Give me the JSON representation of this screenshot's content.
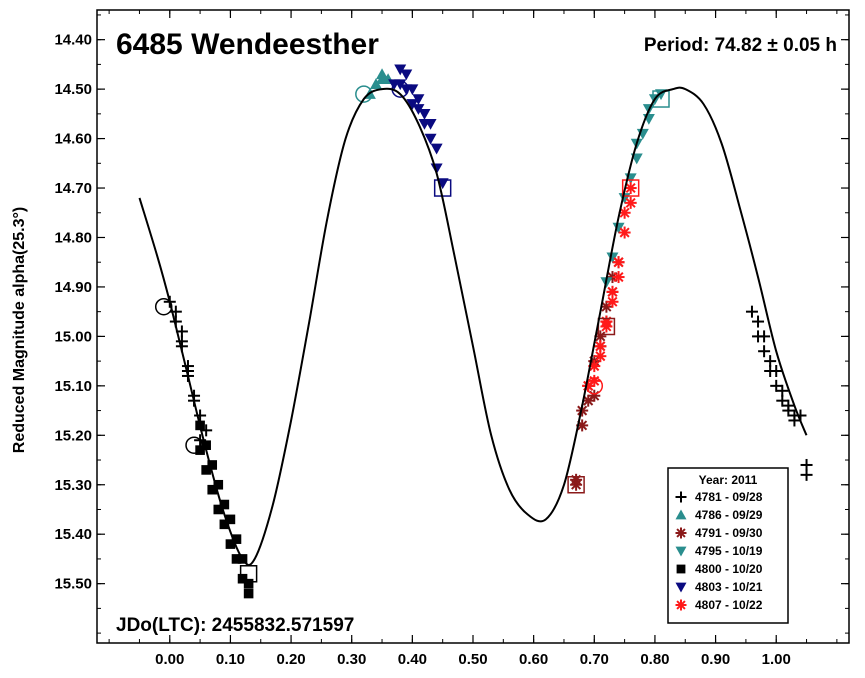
{
  "chart_data": {
    "type": "scatter",
    "title": "6485 Wendeesther",
    "period_label": "Period: 74.82 ± 0.05 h",
    "jdo_label": "JDo(LTC): 2455832.571597",
    "ylabel": "Reduced Magnitude alpha(25.3°)",
    "xlabel": "",
    "xlim": [
      -0.12,
      1.12
    ],
    "ylim": [
      15.62,
      14.34
    ],
    "y_inverted": true,
    "x_ticks": [
      "0.00",
      "0.10",
      "0.20",
      "0.30",
      "0.40",
      "0.50",
      "0.60",
      "0.70",
      "0.80",
      "0.90",
      "1.00"
    ],
    "y_ticks": [
      "14.40",
      "14.50",
      "14.60",
      "14.70",
      "14.80",
      "14.90",
      "15.00",
      "15.10",
      "15.20",
      "15.30",
      "15.40",
      "15.50"
    ],
    "grid": false,
    "legend_position": "bottom-right",
    "legend": {
      "title": "Year: 2011",
      "entries": [
        {
          "label": "4781 - 09/28",
          "marker": "plus",
          "color": "#000000"
        },
        {
          "label": "4786 - 09/29",
          "marker": "triangle-up",
          "color": "#2a8e8e"
        },
        {
          "label": "4791 - 09/30",
          "marker": "asterisk",
          "color": "#8b1a1a"
        },
        {
          "label": "4795 - 10/19",
          "marker": "triangle-down",
          "color": "#2a8e8e"
        },
        {
          "label": "4800 - 10/20",
          "marker": "square",
          "color": "#000000"
        },
        {
          "label": "4803 - 10/21",
          "marker": "triangle-down",
          "color": "#0a0a80"
        },
        {
          "label": "4807 - 10/22",
          "marker": "asterisk",
          "color": "#ff1a1a"
        }
      ]
    },
    "fit_curve": {
      "x": [
        -0.05,
        -0.02,
        0.0,
        0.03,
        0.06,
        0.09,
        0.12,
        0.14,
        0.17,
        0.2,
        0.23,
        0.26,
        0.29,
        0.32,
        0.35,
        0.38,
        0.41,
        0.44,
        0.47,
        0.5,
        0.53,
        0.56,
        0.59,
        0.62,
        0.65,
        0.68,
        0.71,
        0.74,
        0.77,
        0.8,
        0.83,
        0.85,
        0.88,
        0.91,
        0.94,
        0.97,
        1.0,
        1.03,
        1.05
      ],
      "y": [
        14.72,
        14.84,
        14.93,
        15.08,
        15.23,
        15.36,
        15.45,
        15.45,
        15.34,
        15.17,
        14.97,
        14.76,
        14.6,
        14.52,
        14.5,
        14.51,
        14.57,
        14.67,
        14.84,
        15.02,
        15.2,
        15.31,
        15.36,
        15.37,
        15.3,
        15.14,
        14.95,
        14.76,
        14.61,
        14.52,
        14.5,
        14.5,
        14.53,
        14.61,
        14.74,
        14.88,
        15.03,
        15.14,
        15.2
      ]
    },
    "series": [
      {
        "name": "4781 - 09/28",
        "marker": "plus",
        "color": "#000000",
        "x": [
          0.0,
          0.01,
          0.01,
          0.02,
          0.02,
          0.02,
          0.03,
          0.03,
          0.03,
          0.04,
          0.04,
          0.05,
          0.05,
          0.06,
          0.96,
          0.97,
          0.97,
          0.98,
          0.98,
          0.99,
          0.99,
          1.0,
          1.0,
          1.01,
          1.01,
          1.02,
          1.02,
          1.03,
          1.03,
          1.04,
          1.05,
          1.05
        ],
        "y": [
          14.93,
          14.95,
          14.97,
          14.99,
          15.01,
          15.02,
          15.06,
          15.08,
          15.07,
          15.12,
          15.13,
          15.16,
          15.21,
          15.19,
          14.95,
          14.97,
          15.0,
          15.0,
          15.03,
          15.05,
          15.07,
          15.07,
          15.1,
          15.11,
          15.13,
          15.14,
          15.15,
          15.16,
          15.17,
          15.16,
          15.26,
          15.28
        ]
      },
      {
        "name": "4786 - 09/29",
        "marker": "triangle-up",
        "color": "#2a8e8e",
        "x": [
          0.33,
          0.34,
          0.35,
          0.35,
          0.36
        ],
        "y": [
          14.51,
          14.49,
          14.48,
          14.47,
          14.48
        ]
      },
      {
        "name": "4791 - 09/30",
        "marker": "asterisk",
        "color": "#8b1a1a",
        "x": [
          0.67,
          0.67,
          0.68,
          0.68,
          0.69,
          0.69,
          0.7,
          0.7,
          0.71,
          0.71,
          0.72,
          0.72,
          0.73,
          0.73,
          0.74
        ],
        "y": [
          15.29,
          15.3,
          15.18,
          15.15,
          15.13,
          15.1,
          15.12,
          15.05,
          15.02,
          15.0,
          14.97,
          14.94,
          14.91,
          14.88,
          14.85
        ]
      },
      {
        "name": "4795 - 10/19",
        "marker": "triangle-down",
        "color": "#2a8e8e",
        "x": [
          0.72,
          0.73,
          0.74,
          0.75,
          0.76,
          0.77,
          0.77,
          0.78,
          0.79,
          0.79,
          0.8,
          0.81
        ],
        "y": [
          14.89,
          14.84,
          14.78,
          14.72,
          14.68,
          14.64,
          14.61,
          14.59,
          14.56,
          14.54,
          14.52,
          14.51
        ]
      },
      {
        "name": "4800 - 10/20",
        "marker": "square",
        "color": "#000000",
        "x": [
          0.05,
          0.05,
          0.06,
          0.06,
          0.07,
          0.07,
          0.08,
          0.08,
          0.09,
          0.09,
          0.1,
          0.1,
          0.11,
          0.11,
          0.12,
          0.12,
          0.13,
          0.13
        ],
        "y": [
          15.18,
          15.23,
          15.22,
          15.27,
          15.26,
          15.31,
          15.3,
          15.35,
          15.34,
          15.38,
          15.37,
          15.42,
          15.41,
          15.45,
          15.45,
          15.49,
          15.5,
          15.52
        ]
      },
      {
        "name": "4803 - 10/21",
        "marker": "triangle-down",
        "color": "#0a0a80",
        "x": [
          0.37,
          0.38,
          0.38,
          0.39,
          0.39,
          0.4,
          0.4,
          0.41,
          0.41,
          0.42,
          0.42,
          0.43,
          0.43,
          0.44,
          0.44,
          0.45
        ],
        "y": [
          14.49,
          14.46,
          14.49,
          14.47,
          14.5,
          14.5,
          14.53,
          14.52,
          14.54,
          14.55,
          14.57,
          14.57,
          14.6,
          14.62,
          14.66,
          14.69
        ]
      },
      {
        "name": "4807 - 10/22",
        "marker": "asterisk",
        "color": "#ff1a1a",
        "x": [
          0.69,
          0.7,
          0.7,
          0.71,
          0.71,
          0.72,
          0.72,
          0.73,
          0.73,
          0.74,
          0.74,
          0.75,
          0.75,
          0.76,
          0.76
        ],
        "y": [
          15.1,
          15.06,
          15.09,
          15.02,
          15.04,
          14.98,
          14.97,
          14.93,
          14.91,
          14.88,
          14.85,
          14.79,
          14.75,
          14.73,
          14.7
        ]
      }
    ],
    "open_markers": [
      {
        "shape": "circle",
        "x": -0.01,
        "y": 14.94,
        "color": "#000000"
      },
      {
        "shape": "circle",
        "x": 0.04,
        "y": 15.22,
        "color": "#000000"
      },
      {
        "shape": "circle",
        "x": 0.32,
        "y": 14.51,
        "color": "#2a8e8e"
      },
      {
        "shape": "circle",
        "x": 0.38,
        "y": 14.5,
        "color": "#0a0a80"
      },
      {
        "shape": "circle",
        "x": 0.7,
        "y": 15.1,
        "color": "#ff1a1a"
      },
      {
        "shape": "square",
        "x": 0.13,
        "y": 15.48,
        "color": "#000000"
      },
      {
        "shape": "square",
        "x": 0.45,
        "y": 14.7,
        "color": "#0a0a80"
      },
      {
        "shape": "square",
        "x": 0.81,
        "y": 14.52,
        "color": "#2a8e8e"
      },
      {
        "shape": "square",
        "x": 0.76,
        "y": 14.7,
        "color": "#ff1a1a"
      },
      {
        "shape": "square",
        "x": 0.72,
        "y": 14.98,
        "color": "#8b1a1a"
      },
      {
        "shape": "square",
        "x": 0.67,
        "y": 15.3,
        "color": "#8b1a1a"
      }
    ]
  }
}
